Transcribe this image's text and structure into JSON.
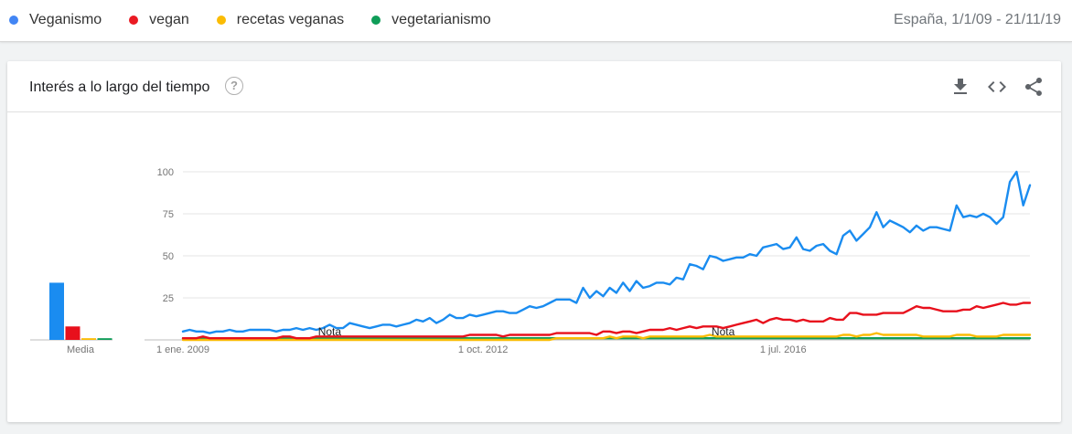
{
  "legend": {
    "items": [
      {
        "label": "Veganismo",
        "color": "#4285f4"
      },
      {
        "label": "vegan",
        "color": "#ea1a23"
      },
      {
        "label": "recetas veganas",
        "color": "#fbbc04"
      },
      {
        "label": "vegetarianismo",
        "color": "#0f9d58"
      }
    ],
    "region_range": "España, 1/1/09 - 21/11/19"
  },
  "card": {
    "title": "Interés a lo largo del tiempo",
    "help_icon": "question-circle-icon",
    "tools": [
      "download-icon",
      "embed-code-icon",
      "share-icon"
    ]
  },
  "chart_data": {
    "type": "line",
    "ylim": [
      0,
      100
    ],
    "yticks": [
      25,
      50,
      75,
      100
    ],
    "ytick_labels": [
      "25",
      "50",
      "75",
      "100"
    ],
    "x_start": "2009-01",
    "x_step": "month",
    "xtick_labels": [
      {
        "label": "1 ene. 2009",
        "index": 0
      },
      {
        "label": "1 oct. 2012",
        "index": 45
      },
      {
        "label": "1 jul. 2016",
        "index": 90
      }
    ],
    "notes": [
      {
        "label": "Nota",
        "index": 22
      },
      {
        "label": "Nota",
        "index": 81
      }
    ],
    "average_label": "Media",
    "averages": [
      {
        "name": "Veganismo",
        "value": 34,
        "color": "#1a8cf0"
      },
      {
        "name": "vegan",
        "value": 8,
        "color": "#e8101c"
      },
      {
        "name": "recetas veganas",
        "value": 1,
        "color": "#fbbc04"
      },
      {
        "name": "vegetarianismo",
        "value": 1,
        "color": "#0f9d58"
      }
    ],
    "series": [
      {
        "name": "Veganismo",
        "color": "#1a8cf0",
        "values": [
          5,
          6,
          5,
          5,
          4,
          5,
          5,
          6,
          5,
          5,
          6,
          6,
          6,
          6,
          5,
          6,
          6,
          7,
          6,
          7,
          6,
          7,
          9,
          7,
          7,
          10,
          9,
          8,
          7,
          8,
          9,
          9,
          8,
          9,
          10,
          12,
          11,
          13,
          10,
          12,
          15,
          13,
          13,
          15,
          14,
          15,
          16,
          17,
          17,
          16,
          16,
          18,
          20,
          19,
          20,
          22,
          24,
          24,
          24,
          22,
          31,
          25,
          29,
          26,
          31,
          28,
          34,
          29,
          35,
          31,
          32,
          34,
          34,
          33,
          37,
          36,
          45,
          44,
          42,
          50,
          49,
          47,
          48,
          49,
          49,
          51,
          50,
          55,
          56,
          57,
          54,
          55,
          61,
          54,
          53,
          56,
          57,
          53,
          51,
          62,
          65,
          59,
          63,
          67,
          76,
          67,
          71,
          69,
          67,
          64,
          68,
          65,
          67,
          67,
          66,
          65,
          80,
          73,
          74,
          73,
          75,
          73,
          69,
          73,
          94,
          100,
          80,
          92
        ]
      },
      {
        "name": "vegan",
        "values": [
          1,
          1,
          1,
          2,
          1,
          1,
          1,
          1,
          1,
          1,
          1,
          1,
          1,
          1,
          1,
          2,
          2,
          1,
          1,
          1,
          2,
          2,
          2,
          2,
          2,
          2,
          2,
          2,
          2,
          2,
          2,
          2,
          2,
          2,
          2,
          2,
          2,
          2,
          2,
          2,
          2,
          2,
          2,
          3,
          3,
          3,
          3,
          3,
          2,
          3,
          3,
          3,
          3,
          3,
          3,
          3,
          4,
          4,
          4,
          4,
          4,
          4,
          3,
          5,
          5,
          4,
          5,
          5,
          4,
          5,
          6,
          6,
          6,
          7,
          6,
          7,
          8,
          7,
          8,
          8,
          8,
          7,
          8,
          9,
          10,
          11,
          12,
          10,
          12,
          13,
          12,
          12,
          11,
          12,
          11,
          11,
          11,
          13,
          12,
          12,
          16,
          16,
          15,
          15,
          15,
          16,
          16,
          16,
          16,
          18,
          20,
          19,
          19,
          18,
          17,
          17,
          17,
          18,
          18,
          20,
          19,
          20,
          21,
          22,
          21,
          21,
          22,
          22
        ],
        "color": "#e8101c"
      },
      {
        "name": "recetas veganas",
        "values": [
          0,
          0,
          0,
          0,
          0,
          0,
          0,
          0,
          0,
          0,
          0,
          0,
          0,
          0,
          0,
          0,
          0,
          0,
          0,
          0,
          0,
          0,
          0,
          0,
          0,
          0,
          0,
          0,
          0,
          0,
          0,
          0,
          0,
          0,
          0,
          0,
          0,
          0,
          0,
          0,
          0,
          0,
          0,
          0,
          0,
          0,
          0,
          0,
          0,
          0,
          0,
          0,
          0,
          0,
          0,
          0,
          1,
          1,
          1,
          1,
          1,
          1,
          1,
          1,
          2,
          1,
          2,
          2,
          2,
          1,
          2,
          2,
          2,
          2,
          2,
          2,
          2,
          2,
          2,
          3,
          2,
          2,
          2,
          2,
          2,
          2,
          2,
          2,
          2,
          2,
          2,
          2,
          2,
          2,
          2,
          2,
          2,
          2,
          2,
          3,
          3,
          2,
          3,
          3,
          4,
          3,
          3,
          3,
          3,
          3,
          3,
          2,
          2,
          2,
          2,
          2,
          3,
          3,
          3,
          2,
          2,
          2,
          2,
          3,
          3,
          3,
          3,
          3
        ],
        "color": "#fbbc04"
      },
      {
        "name": "vegetarianismo",
        "values": [
          1,
          1,
          1,
          1,
          1,
          1,
          1,
          1,
          1,
          1,
          1,
          1,
          1,
          1,
          1,
          1,
          1,
          1,
          1,
          1,
          1,
          1,
          1,
          1,
          1,
          1,
          1,
          1,
          1,
          1,
          1,
          1,
          1,
          1,
          1,
          1,
          1,
          1,
          1,
          1,
          1,
          1,
          1,
          1,
          1,
          1,
          1,
          1,
          1,
          1,
          1,
          1,
          1,
          1,
          1,
          1,
          1,
          1,
          1,
          1,
          1,
          1,
          1,
          1,
          1,
          1,
          1,
          1,
          1,
          1,
          1,
          1,
          1,
          1,
          1,
          1,
          1,
          1,
          1,
          1,
          1,
          1,
          1,
          1,
          1,
          1,
          1,
          1,
          1,
          1,
          1,
          1,
          1,
          1,
          1,
          1,
          1,
          1,
          1,
          1,
          1,
          1,
          1,
          1,
          1,
          1,
          1,
          1,
          1,
          1,
          1,
          1,
          1,
          1,
          1,
          1,
          1,
          1,
          1,
          1,
          1,
          1,
          1,
          1,
          1,
          1,
          1,
          1
        ],
        "color": "#0f9d58"
      }
    ]
  }
}
